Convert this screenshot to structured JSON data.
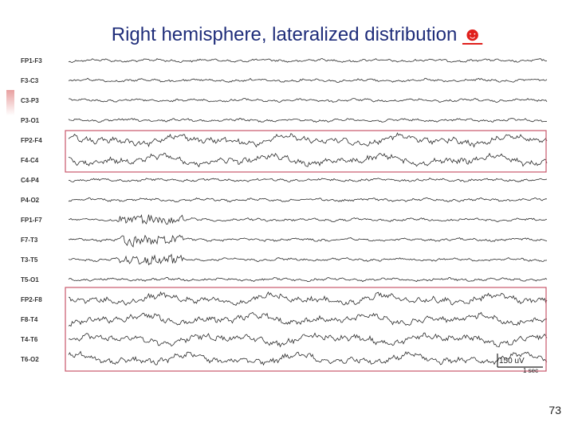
{
  "slide": {
    "title": "Right hemisphere, lateralized distribution",
    "title_icon": "smiley-face-icon",
    "title_icon_glyph": "☻",
    "page_number": "73"
  },
  "eeg": {
    "channels": [
      "FP1-F3",
      "F3-C3",
      "C3-P3",
      "P3-O1",
      "FP2-F4",
      "F4-C4",
      "C4-P4",
      "P4-O2",
      "FP1-F7",
      "F7-T3",
      "T3-T5",
      "T5-O1",
      "FP2-F8",
      "F8-T4",
      "T4-T6",
      "T6-O2"
    ],
    "highlighted_channels": [
      "FP2-F4",
      "F4-C4",
      "FP2-F8",
      "F8-T4",
      "T4-T6",
      "T6-O2"
    ],
    "artifact_channels": [
      "FP1-F7",
      "F7-T3",
      "T3-T5"
    ],
    "amplitude_scale_label": "150 uV",
    "time_scale_label": "1 sec",
    "highlight_color": "#c8566a",
    "trace_color": "#2a2a2a"
  }
}
